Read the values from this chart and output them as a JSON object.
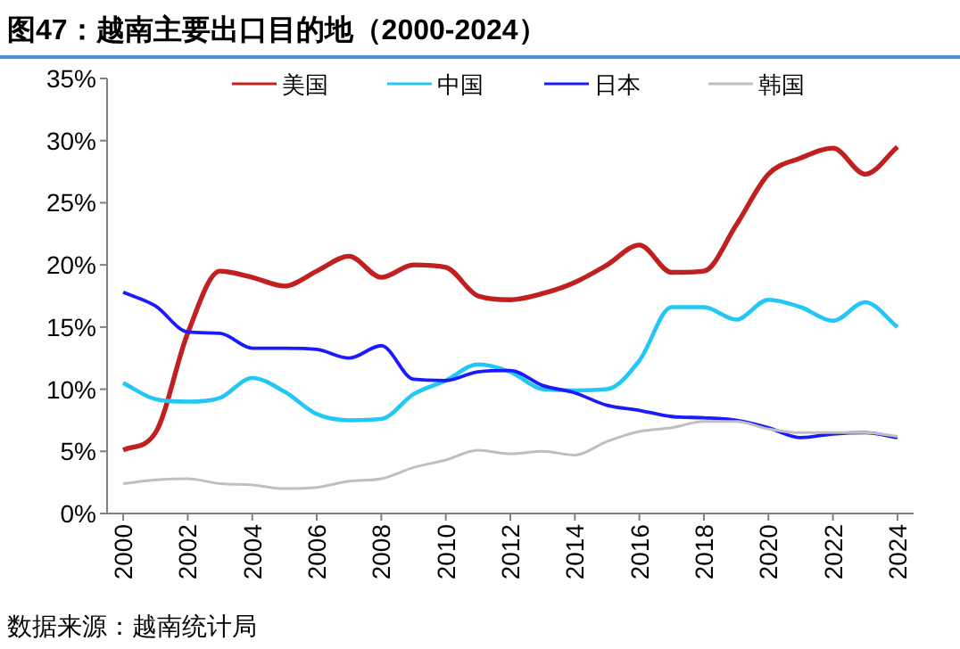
{
  "chart_data": {
    "type": "line",
    "title": "图47：越南主要出口目的地（2000-2024）",
    "annotations": [
      "数据来源：越南统计局"
    ],
    "x": [
      2000,
      2001,
      2002,
      2003,
      2004,
      2005,
      2006,
      2007,
      2008,
      2009,
      2010,
      2011,
      2012,
      2013,
      2014,
      2015,
      2016,
      2017,
      2018,
      2019,
      2020,
      2021,
      2022,
      2023,
      2024
    ],
    "series": [
      {
        "name": "美国",
        "color": "#c0201f",
        "values": [
          5.1,
          6.5,
          14.5,
          19.5,
          19.0,
          18.3,
          19.5,
          20.7,
          19.0,
          20.0,
          19.8,
          17.5,
          17.2,
          17.7,
          18.6,
          20.0,
          21.6,
          19.4,
          19.5,
          23.2,
          27.3,
          28.6,
          29.4,
          27.3,
          29.5
        ]
      },
      {
        "name": "中国",
        "color": "#22c7f5",
        "values": [
          10.5,
          9.2,
          9.0,
          9.3,
          10.9,
          9.8,
          8.0,
          7.5,
          7.6,
          9.6,
          10.7,
          12.0,
          11.4,
          10.0,
          9.9,
          10.0,
          12.3,
          16.6,
          16.6,
          15.6,
          17.2,
          16.6,
          15.5,
          17.0,
          15.0
        ]
      },
      {
        "name": "日本",
        "color": "#1a1aff",
        "values": [
          17.8,
          16.7,
          14.6,
          14.5,
          13.3,
          13.3,
          13.2,
          12.5,
          13.5,
          10.8,
          10.7,
          11.4,
          11.5,
          10.3,
          9.7,
          8.7,
          8.3,
          7.8,
          7.7,
          7.5,
          6.9,
          6.1,
          6.4,
          6.5,
          6.1
        ]
      },
      {
        "name": "韩国",
        "color": "#bfbfbf",
        "values": [
          2.4,
          2.7,
          2.8,
          2.4,
          2.3,
          2.0,
          2.1,
          2.6,
          2.8,
          3.7,
          4.3,
          5.1,
          4.8,
          5.0,
          4.7,
          5.8,
          6.6,
          6.9,
          7.4,
          7.4,
          6.8,
          6.5,
          6.5,
          6.5,
          6.2
        ]
      }
    ],
    "xlim": [
      1999.5,
      2024.5
    ],
    "xticks": [
      2000,
      2002,
      2004,
      2006,
      2008,
      2010,
      2012,
      2014,
      2016,
      2018,
      2020,
      2022,
      2024
    ],
    "ylim": [
      0,
      35
    ],
    "yticks": [
      {
        "value": 0,
        "label": "0%"
      },
      {
        "value": 5,
        "label": "5%"
      },
      {
        "value": 10,
        "label": "10%"
      },
      {
        "value": 15,
        "label": "15%"
      },
      {
        "value": 20,
        "label": "20%"
      },
      {
        "value": 25,
        "label": "25%"
      },
      {
        "value": 30,
        "label": "30%"
      },
      {
        "value": 35,
        "label": "35%"
      }
    ],
    "legend": "top",
    "grid": false,
    "marker": "none",
    "line_style": "solid"
  }
}
